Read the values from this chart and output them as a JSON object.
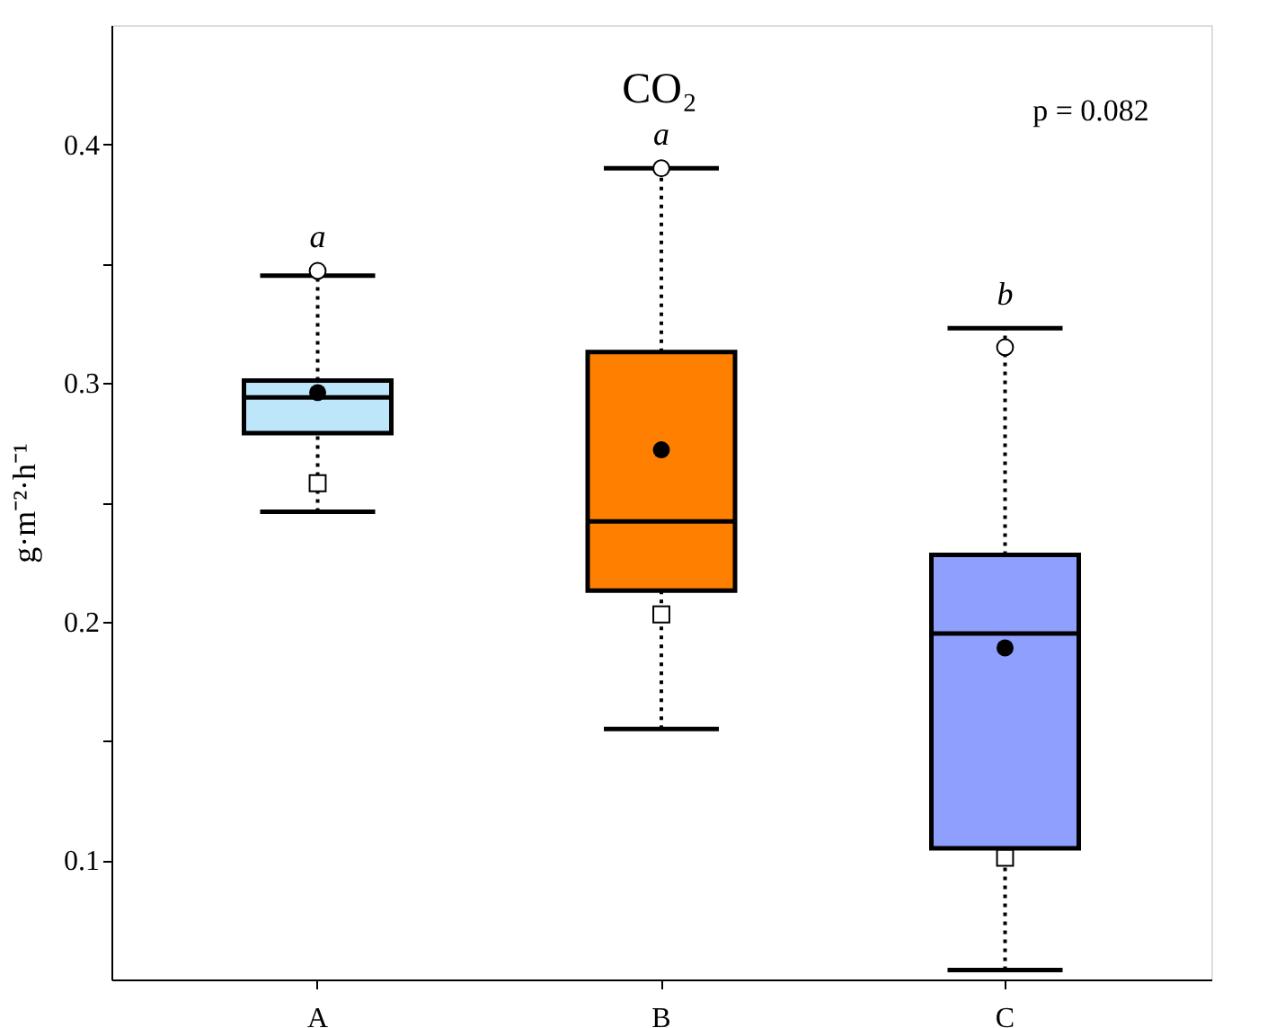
{
  "chart_data": {
    "type": "box",
    "title": "CO₂",
    "ylabel": "g·m⁻²·h⁻¹",
    "categories": [
      "A",
      "B",
      "C"
    ],
    "colors": [
      "#bde6fb",
      "#ff8000",
      "#8f9ffe"
    ],
    "boxes": [
      {
        "low": 0.246,
        "q1": 0.279,
        "median": 0.294,
        "q3": 0.301,
        "high": 0.345,
        "mean": 0.296,
        "outliers": [
          0.347,
          0.258
        ]
      },
      {
        "low": 0.155,
        "q1": 0.213,
        "median": 0.242,
        "q3": 0.313,
        "high": 0.39,
        "mean": 0.272,
        "outliers": [
          0.39,
          0.203
        ]
      },
      {
        "low": 0.054,
        "q1": 0.105,
        "median": 0.195,
        "q3": 0.228,
        "high": 0.323,
        "mean": 0.189,
        "outliers": [
          0.315,
          0.101
        ]
      }
    ],
    "ylim": [
      0.05,
      0.45
    ],
    "yticks": [
      0.1,
      {
        "value": 0.15,
        "label": null
      },
      0.2,
      {
        "value": 0.25,
        "label": null
      },
      0.3,
      {
        "value": 0.35,
        "label": null
      },
      0.4
    ],
    "annotations": [
      {
        "text": "a",
        "x": "A",
        "y": 0.347
      },
      {
        "text": "a",
        "x": "B",
        "y": 0.39
      },
      {
        "text": "b",
        "x": "C",
        "y": 0.323
      },
      "p = 0.082"
    ],
    "grid": false
  }
}
